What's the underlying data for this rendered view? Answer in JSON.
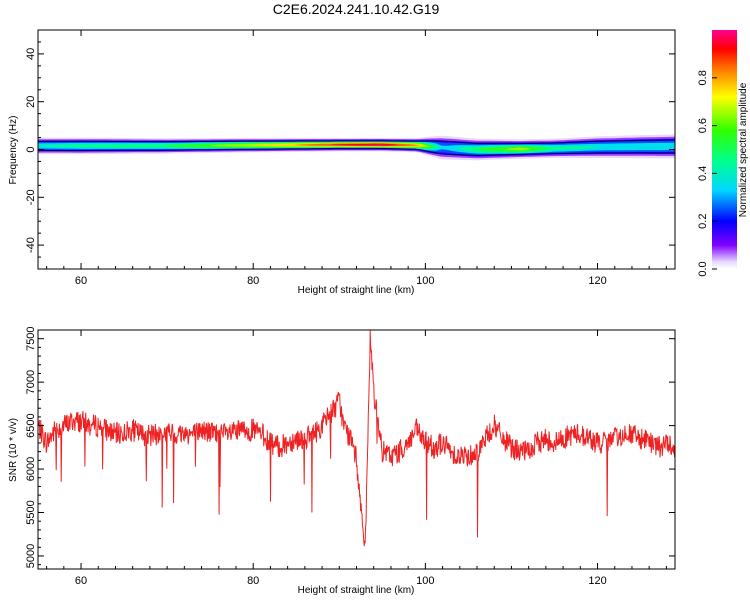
{
  "chart_data": [
    {
      "type": "heatmap",
      "title": "C2E6.2024.241.10.42.G19",
      "xlabel": "Height of straight line (km)",
      "ylabel": "Frequency (Hz)",
      "xlim": [
        55,
        129
      ],
      "ylim": [
        -50,
        50
      ],
      "xticks": [
        "60",
        "80",
        "100",
        "120"
      ],
      "yticks": [
        "40",
        "20",
        "0",
        "-20",
        "-40"
      ],
      "colorbar": {
        "label": "Normalized spectral amplitude",
        "range": [
          0,
          1
        ],
        "ticks": [
          "0.0",
          "0.2",
          "0.4",
          "0.6",
          "0.8"
        ],
        "colors": [
          "#e0d0ff",
          "#6000ff",
          "#0000ff",
          "#00e0ff",
          "#00ff80",
          "#60ff00",
          "#ffff00",
          "#ff8000",
          "#ff0000",
          "#ff0080"
        ]
      },
      "band": {
        "description_points_x": [
          55,
          60,
          70,
          80,
          90,
          95,
          99,
          102,
          106,
          111,
          115,
          120,
          125,
          129
        ],
        "center_hz": [
          1.5,
          1.5,
          1.5,
          1.8,
          2.0,
          2.0,
          1.8,
          0.8,
          0.0,
          0.2,
          0.5,
          1.0,
          1.2,
          1.3
        ],
        "peak_amplitude": [
          0.45,
          0.5,
          0.55,
          0.75,
          0.95,
          1.0,
          0.85,
          0.35,
          0.55,
          0.7,
          0.5,
          0.45,
          0.45,
          0.45
        ],
        "halfwidth_hz": [
          3.5,
          3.5,
          3.2,
          3.0,
          2.8,
          2.8,
          3.0,
          5.0,
          4.5,
          4.0,
          4.0,
          4.5,
          4.8,
          5.0
        ]
      }
    },
    {
      "type": "line",
      "xlabel": "Height of straight line (km)",
      "ylabel": "SNR (10 * v/v)",
      "xlim": [
        55,
        129
      ],
      "ylim": [
        4850,
        7600
      ],
      "xticks": [
        "60",
        "80",
        "100",
        "120"
      ],
      "yticks": [
        "7500",
        "7000",
        "6500",
        "6000",
        "5500",
        "5000"
      ],
      "series": [
        {
          "color": "#ee2222",
          "x": [
            55,
            56,
            57,
            58,
            59,
            60,
            61,
            62,
            63,
            64,
            65,
            66,
            67,
            68,
            69,
            70,
            71,
            72,
            73,
            74,
            75,
            76,
            77,
            78,
            79,
            80,
            81,
            82,
            83,
            84,
            85,
            86,
            87,
            88,
            89,
            89.5,
            90,
            90.5,
            91,
            91.5,
            92,
            92.5,
            93,
            93.3,
            93.6,
            94,
            94.5,
            95,
            96,
            97,
            98,
            99,
            100,
            101,
            102,
            103,
            104,
            105,
            106,
            107,
            108,
            109,
            110,
            111,
            112,
            113,
            114,
            115,
            116,
            117,
            118,
            119,
            120,
            121,
            122,
            123,
            124,
            125,
            126,
            127,
            128,
            129
          ],
          "y": [
            6500,
            6300,
            6450,
            6500,
            6550,
            6550,
            6500,
            6500,
            6450,
            6400,
            6420,
            6450,
            6400,
            6380,
            6400,
            6420,
            6400,
            6420,
            6400,
            6450,
            6420,
            6400,
            6400,
            6420,
            6450,
            6450,
            6400,
            6300,
            6250,
            6300,
            6350,
            6350,
            6400,
            6500,
            6650,
            6700,
            6800,
            6500,
            6400,
            6300,
            6100,
            5600,
            5000,
            6200,
            7550,
            6900,
            6500,
            6200,
            6150,
            6200,
            6300,
            6450,
            6300,
            6250,
            6300,
            6200,
            6150,
            6150,
            6200,
            6350,
            6500,
            6350,
            6250,
            6200,
            6200,
            6300,
            6350,
            6300,
            6350,
            6400,
            6400,
            6350,
            6300,
            6300,
            6350,
            6400,
            6400,
            6350,
            6300,
            6250,
            6300,
            6250
          ]
        }
      ]
    }
  ]
}
